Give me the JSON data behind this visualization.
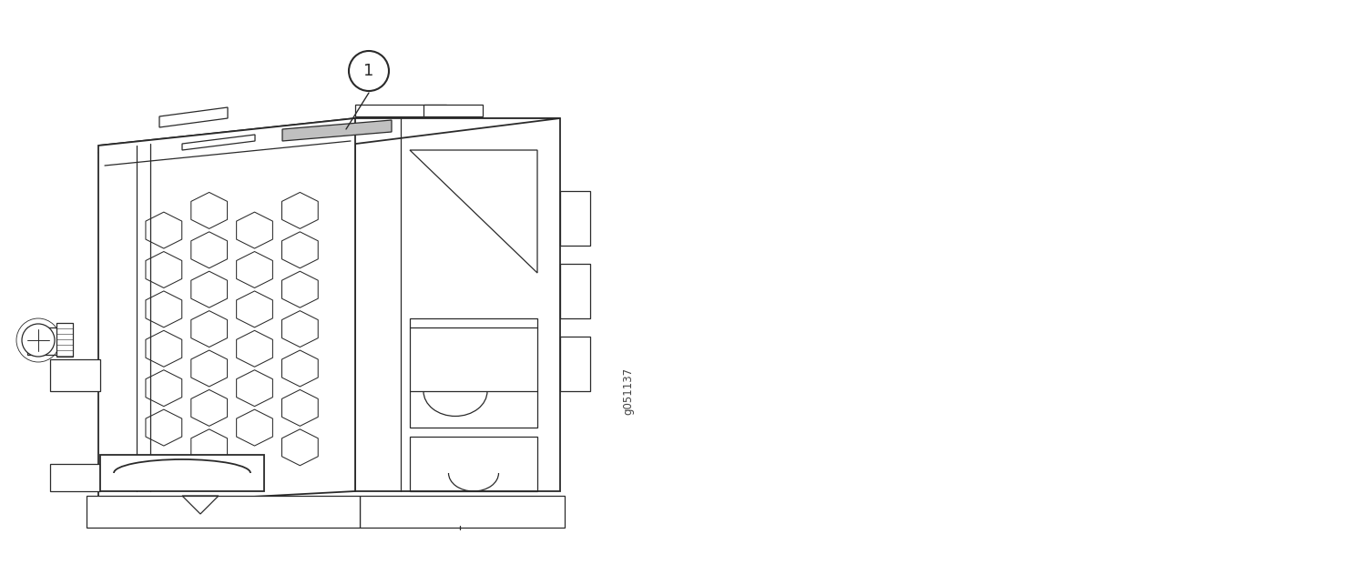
{
  "bg_color": "#ffffff",
  "line_color": "#2a2a2a",
  "label_fill": "#b0b0b0",
  "fig_id": "g051137",
  "callout_label": "1",
  "figsize": [
    15.01,
    6.31
  ],
  "dpi": 100,
  "fig_w": 1501,
  "fig_h": 631
}
